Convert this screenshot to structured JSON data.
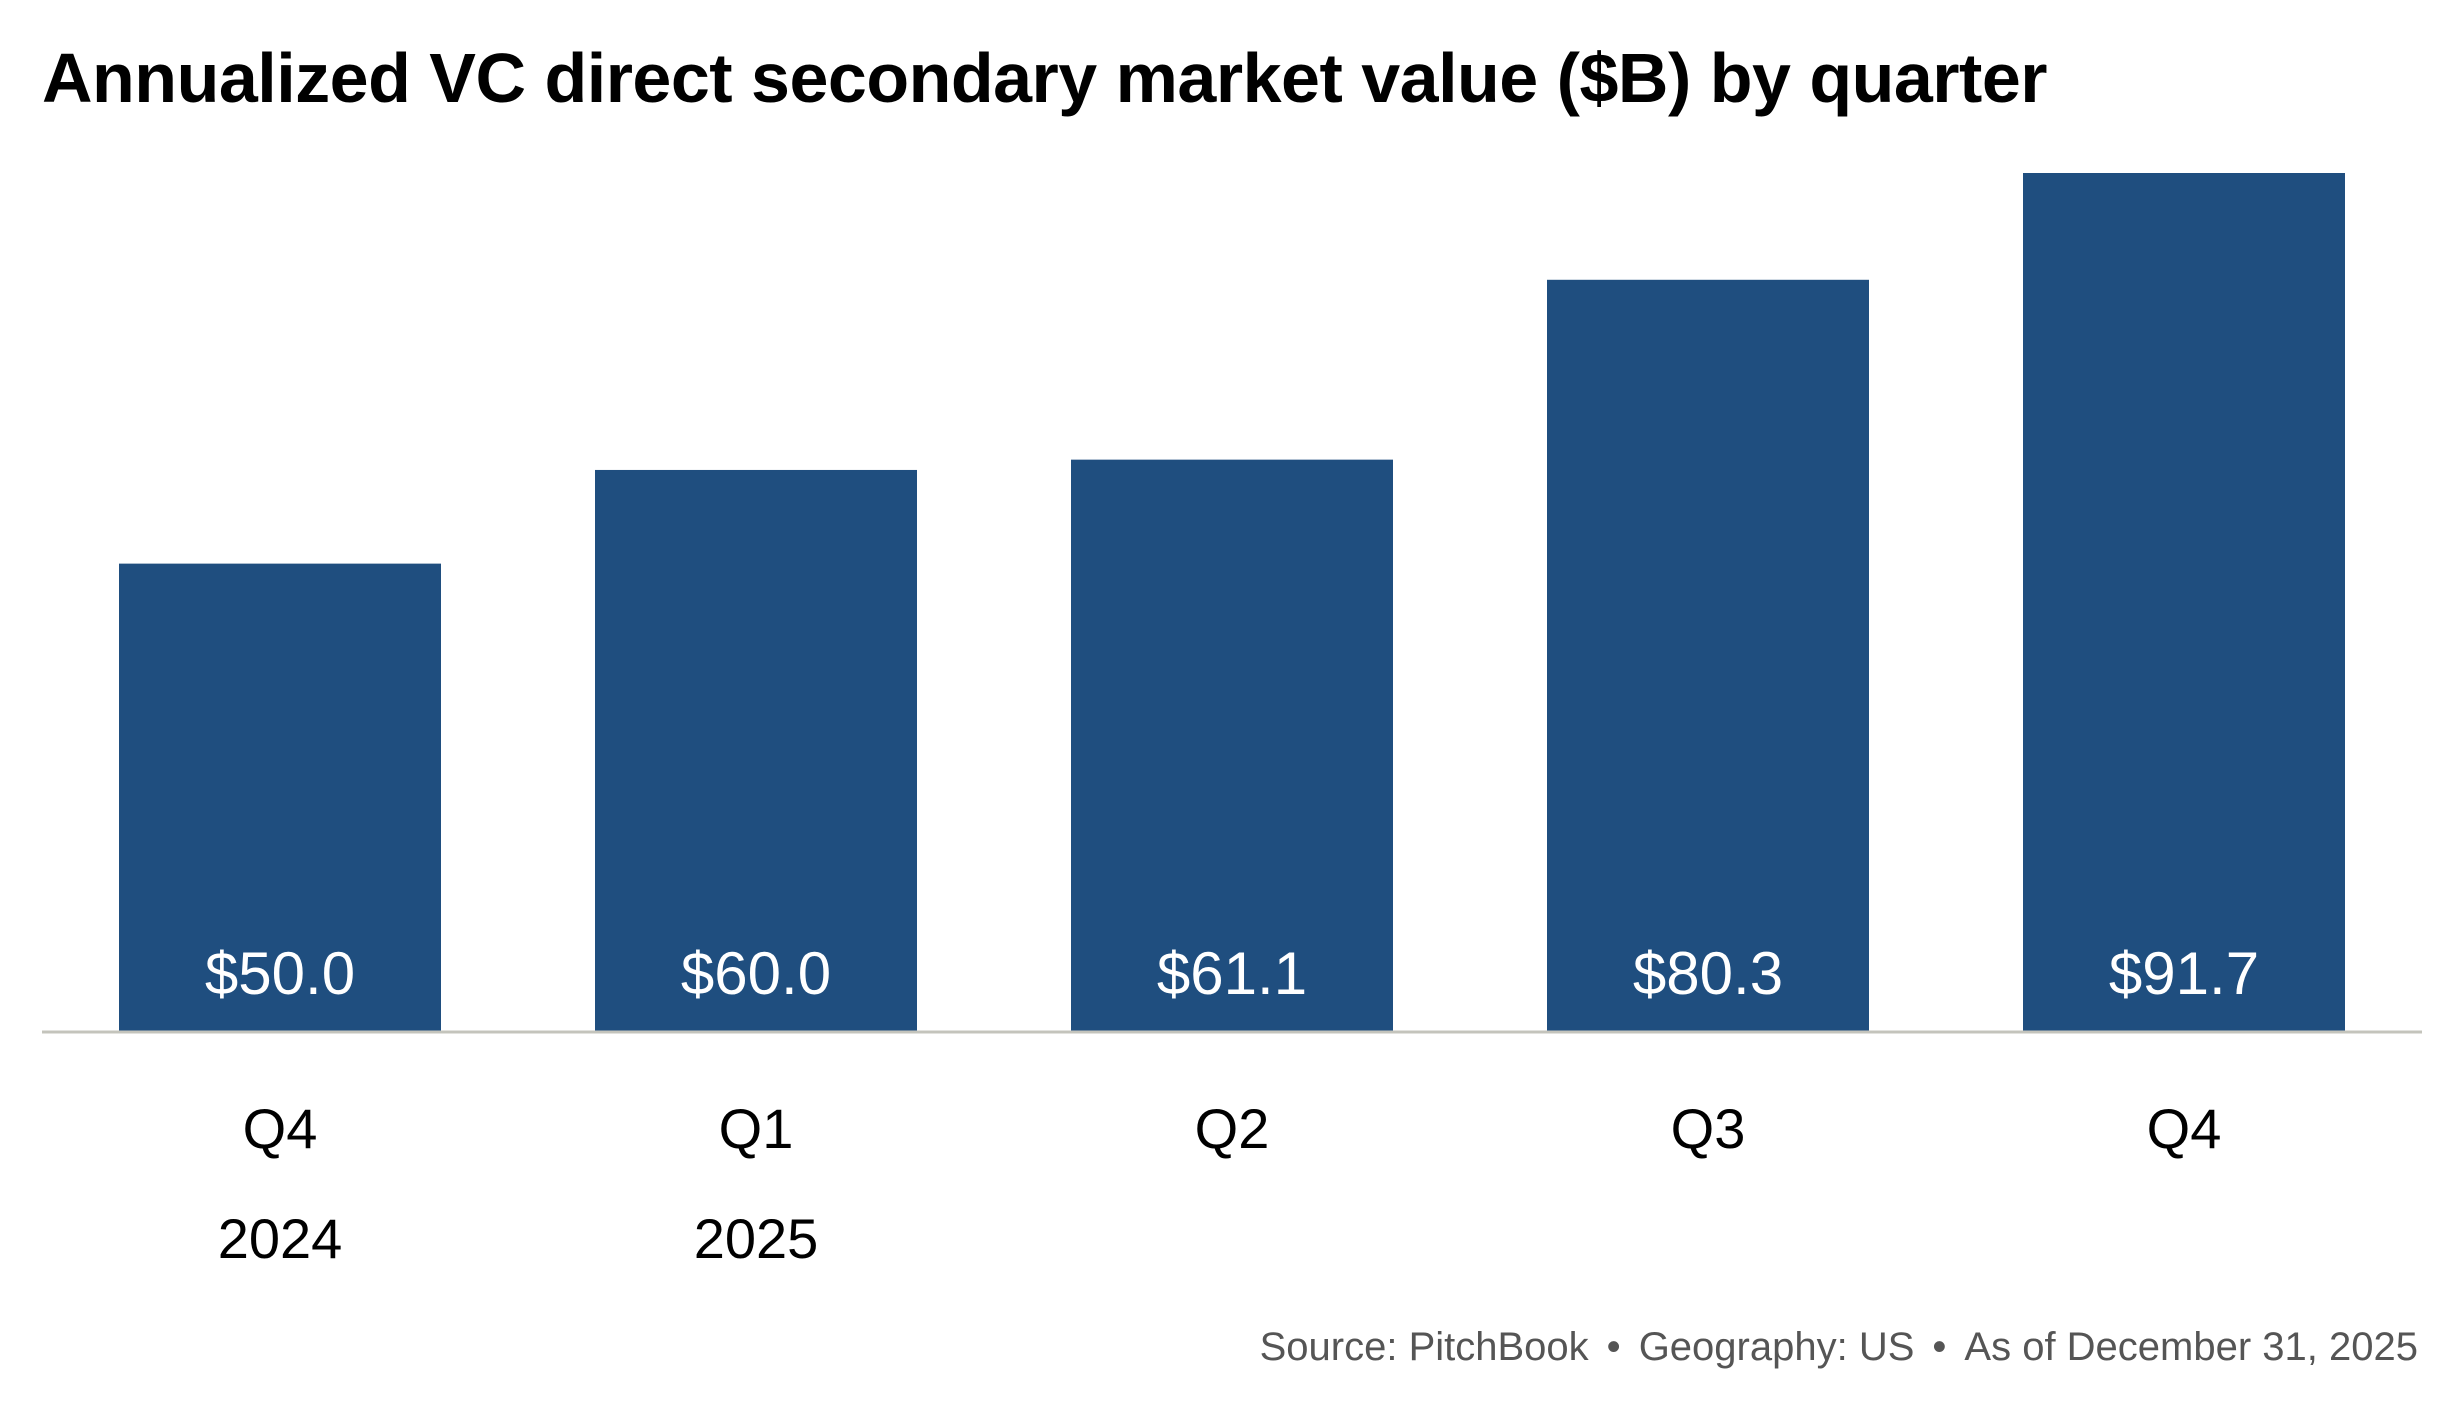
{
  "chart_data": {
    "type": "bar",
    "title": "Annualized VC direct secondary market value ($B) by quarter",
    "categories": [
      "Q4",
      "Q1",
      "Q2",
      "Q3",
      "Q4"
    ],
    "category_years": [
      "2024",
      "2025",
      "",
      "",
      ""
    ],
    "values": [
      50.0,
      60.0,
      61.1,
      80.3,
      91.7
    ],
    "data_labels": [
      "$50.0",
      "$60.0",
      "$61.1",
      "$80.3",
      "$91.7"
    ],
    "xlabel": "",
    "ylabel": "",
    "ylim": [
      0,
      91.7
    ],
    "grid": false,
    "legend": "none"
  },
  "colors": {
    "bar": "#1F4E7F",
    "baseline": "#C4C4BC",
    "bar_label": "#FFFFFF",
    "axis_text": "#000000",
    "source_text": "#555555"
  },
  "footer": {
    "source": "Source: PitchBook",
    "separator": "•",
    "geography": "Geography: US",
    "as_of": "As of December 31, 2025"
  }
}
